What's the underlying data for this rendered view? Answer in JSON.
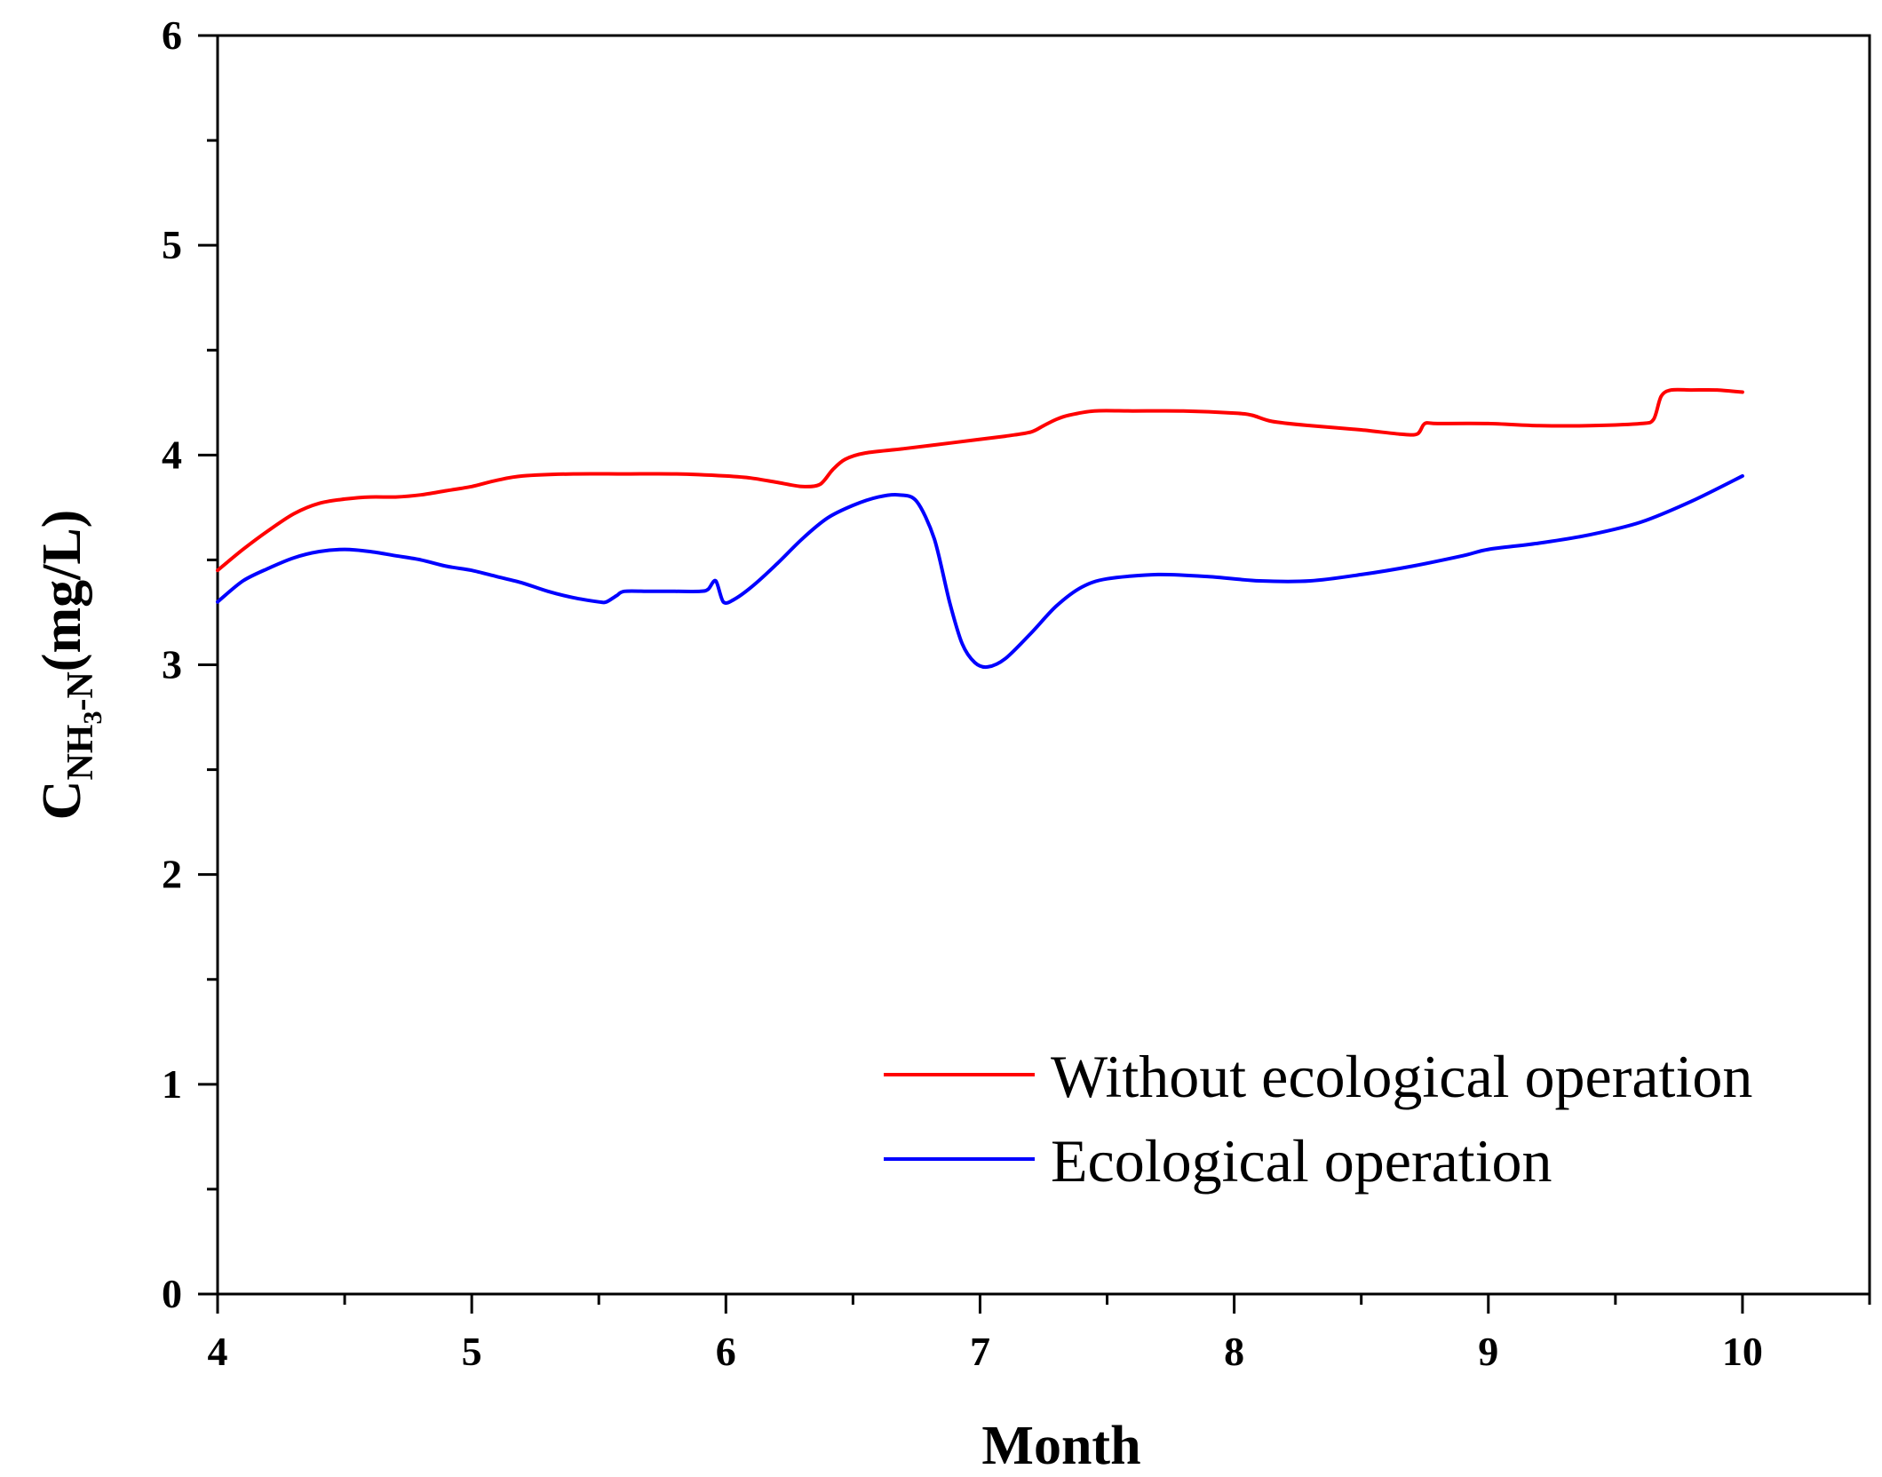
{
  "chart_data": {
    "type": "line",
    "title": "",
    "xlabel": "Month",
    "ylabel": {
      "main": "C",
      "sub_part1": "NH",
      "sub_digit": "3",
      "sub_part2": "-N",
      "units": "(mg/L)"
    },
    "xlim": [
      4,
      10.5
    ],
    "ylim": [
      0,
      6
    ],
    "x_ticks": [
      4,
      5,
      6,
      7,
      8,
      9,
      10
    ],
    "y_ticks": [
      0,
      1,
      2,
      3,
      4,
      5,
      6
    ],
    "x_tick_labels": [
      "4",
      "5",
      "6",
      "7",
      "8",
      "9",
      "10"
    ],
    "y_tick_labels": [
      "0",
      "1",
      "2",
      "3",
      "4",
      "5",
      "6"
    ],
    "grid": false,
    "legend_position": "bottom-right",
    "series": [
      {
        "name": "Without ecological operation",
        "color": "#ff0000",
        "x": [
          4.0,
          4.1,
          4.2,
          4.3,
          4.4,
          4.5,
          4.6,
          4.7,
          4.8,
          4.9,
          5.0,
          5.1,
          5.2,
          5.4,
          5.6,
          5.8,
          6.0,
          6.1,
          6.2,
          6.3,
          6.37,
          6.42,
          6.47,
          6.55,
          6.7,
          6.9,
          7.1,
          7.2,
          7.25,
          7.3,
          7.35,
          7.45,
          7.6,
          7.8,
          8.0,
          8.07,
          8.15,
          8.3,
          8.5,
          8.65,
          8.72,
          8.75,
          8.8,
          9.0,
          9.2,
          9.4,
          9.6,
          9.65,
          9.68,
          9.72,
          9.8,
          9.9,
          10.0
        ],
        "values": [
          3.45,
          3.55,
          3.64,
          3.72,
          3.77,
          3.79,
          3.8,
          3.8,
          3.81,
          3.83,
          3.85,
          3.88,
          3.9,
          3.91,
          3.91,
          3.91,
          3.9,
          3.89,
          3.87,
          3.85,
          3.86,
          3.93,
          3.98,
          4.01,
          4.03,
          4.06,
          4.09,
          4.11,
          4.14,
          4.17,
          4.19,
          4.21,
          4.21,
          4.21,
          4.2,
          4.19,
          4.16,
          4.14,
          4.12,
          4.1,
          4.1,
          4.15,
          4.15,
          4.15,
          4.14,
          4.14,
          4.15,
          4.17,
          4.28,
          4.31,
          4.31,
          4.31,
          4.3
        ]
      },
      {
        "name": "Ecological operation",
        "color": "#0000ff",
        "x": [
          4.0,
          4.1,
          4.2,
          4.3,
          4.4,
          4.5,
          4.6,
          4.7,
          4.8,
          4.9,
          5.0,
          5.1,
          5.2,
          5.3,
          5.4,
          5.5,
          5.53,
          5.57,
          5.6,
          5.7,
          5.8,
          5.9,
          5.93,
          5.96,
          5.99,
          6.03,
          6.1,
          6.2,
          6.3,
          6.4,
          6.5,
          6.6,
          6.68,
          6.75,
          6.82,
          6.88,
          6.93,
          6.98,
          7.03,
          7.1,
          7.2,
          7.3,
          7.4,
          7.5,
          7.7,
          7.9,
          8.1,
          8.3,
          8.5,
          8.7,
          8.9,
          9.0,
          9.2,
          9.4,
          9.6,
          9.8,
          10.0
        ],
        "values": [
          3.3,
          3.4,
          3.46,
          3.51,
          3.54,
          3.55,
          3.54,
          3.52,
          3.5,
          3.47,
          3.45,
          3.42,
          3.39,
          3.35,
          3.32,
          3.3,
          3.3,
          3.33,
          3.35,
          3.35,
          3.35,
          3.35,
          3.36,
          3.4,
          3.3,
          3.31,
          3.37,
          3.48,
          3.6,
          3.7,
          3.76,
          3.8,
          3.81,
          3.78,
          3.6,
          3.3,
          3.1,
          3.01,
          2.99,
          3.03,
          3.15,
          3.28,
          3.37,
          3.41,
          3.43,
          3.42,
          3.4,
          3.4,
          3.43,
          3.47,
          3.52,
          3.55,
          3.58,
          3.62,
          3.68,
          3.78,
          3.9
        ]
      }
    ]
  }
}
